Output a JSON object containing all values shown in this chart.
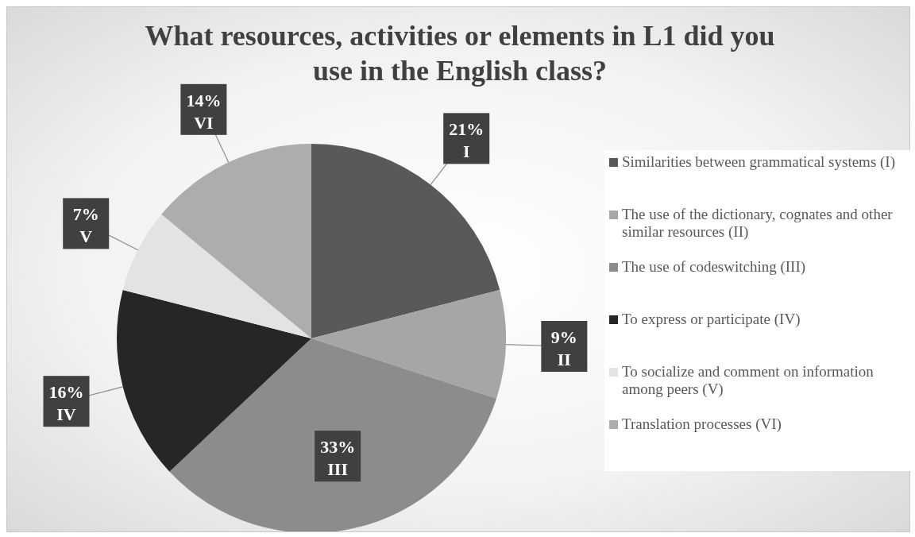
{
  "chart_data": {
    "type": "pie",
    "title": "What resources, activities or elements in L1 did you use in the English class?",
    "categories": [
      "Similarities between grammatical systems (I)",
      "The use of the dictionary, cognates and other similar resources (II)",
      "The use of codeswitching (III)",
      "To express or participate (IV)",
      "To socialize and comment on information among peers (V)",
      "Translation processes (VI)"
    ],
    "values": [
      21,
      9,
      33,
      16,
      7,
      14
    ],
    "colors": [
      "#595959",
      "#a6a6a6",
      "#8c8c8c",
      "#262626",
      "#e3e3e3",
      "#adadad"
    ],
    "value_labels": [
      "21%\nI",
      "9%\nII",
      "33%\nIII",
      "16%\nIV",
      "7%\nV",
      "14%\nVI"
    ],
    "legend": "right"
  }
}
